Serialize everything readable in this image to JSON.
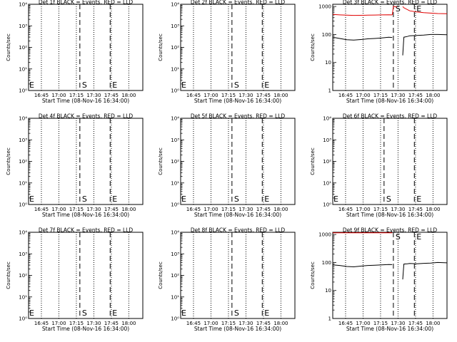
{
  "figure": {
    "background": "#ffffff",
    "ink": "#000000",
    "events_color": "#000000",
    "lld_color": "#e00000"
  },
  "chart_data": [
    {
      "type": "line",
      "id": "det1",
      "title": "Det 1f BLACK = Events, RED = LLD",
      "xlabel": "Start Time (08-Nov-16 16:34:00)",
      "ylabel": "Counts/sec",
      "xlim": [
        "16:34",
        "18:12"
      ],
      "xticks": [
        "16:45",
        "17:00",
        "17:15",
        "17:30",
        "17:45",
        "18:00"
      ],
      "yscale": "log",
      "ylim": [
        1,
        10000
      ],
      "yticks": [
        "10⁰",
        "10¹",
        "10²",
        "10³",
        "10⁴"
      ],
      "markers": [
        {
          "label": "E",
          "time": "16:34"
        },
        {
          "label": "S",
          "time": "17:18"
        },
        {
          "label": "E",
          "time": "17:44"
        }
      ],
      "series": []
    },
    {
      "type": "line",
      "id": "det2",
      "title": "Det 2f BLACK = Events, RED = LLD",
      "xlabel": "Start Time (08-Nov-16 16:34:00)",
      "ylabel": "Counts/sec",
      "xlim": [
        "16:34",
        "18:12"
      ],
      "xticks": [
        "16:45",
        "17:00",
        "17:15",
        "17:30",
        "17:45",
        "18:00"
      ],
      "yscale": "log",
      "ylim": [
        1,
        10000
      ],
      "yticks": [
        "10⁰",
        "10¹",
        "10²",
        "10³",
        "10⁴"
      ],
      "markers": [
        {
          "label": "E",
          "time": "16:34"
        },
        {
          "label": "S",
          "time": "17:18"
        },
        {
          "label": "E",
          "time": "17:44"
        }
      ],
      "series": []
    },
    {
      "type": "line",
      "id": "det3",
      "title": "Det 3f BLACK = Events, RED = LLD",
      "xlabel": "Start Time (08-Nov-16 16:34:00)",
      "ylabel": "Counts/sec",
      "xlim": [
        "16:34",
        "18:12"
      ],
      "xticks": [
        "16:45",
        "17:00",
        "17:15",
        "17:30",
        "17:45",
        "18:00"
      ],
      "yscale": "log",
      "ylim": [
        1,
        1200
      ],
      "yticks": [
        "1",
        "10",
        "100",
        "1000"
      ],
      "markers": [
        {
          "label": "S",
          "time": "17:26"
        },
        {
          "label": "E",
          "time": "17:44"
        }
      ],
      "series": [
        {
          "color": "#e00000",
          "segments": [
            {
              "x": [
                "16:34",
                "16:40",
                "16:46",
                "16:52",
                "16:58",
                "17:04",
                "17:10",
                "17:16",
                "17:22",
                "17:25"
              ],
              "y": [
                520,
                500,
                490,
                480,
                485,
                490,
                495,
                500,
                505,
                500
              ]
            },
            {
              "x": [
                "17:25",
                "17:26",
                "17:27",
                "17:29"
              ],
              "y": [
                500,
                1000,
                1000,
                950
              ]
            },
            {
              "x": [
                "17:34",
                "17:35",
                "17:40",
                "17:46",
                "17:52",
                "17:58",
                "18:04",
                "18:12"
              ],
              "y": [
                1000,
                900,
                700,
                640,
                600,
                580,
                560,
                550
              ]
            }
          ]
        },
        {
          "color": "#000000",
          "segments": [
            {
              "x": [
                "16:34",
                "16:40",
                "16:46",
                "16:52",
                "16:58",
                "17:04",
                "17:10",
                "17:16",
                "17:22",
                "17:25"
              ],
              "y": [
                80,
                72,
                65,
                63,
                66,
                70,
                72,
                75,
                80,
                78
              ]
            },
            {
              "x": [
                "17:34",
                "17:35",
                "17:38",
                "17:40",
                "17:46",
                "17:52",
                "17:58",
                "18:04",
                "18:12"
              ],
              "y": [
                18,
                80,
                85,
                90,
                92,
                95,
                100,
                100,
                98
              ]
            }
          ]
        }
      ]
    },
    {
      "type": "line",
      "id": "det4",
      "title": "Det 4f BLACK = Events, RED = LLD",
      "xlabel": "Start Time (08-Nov-16 16:34:00)",
      "ylabel": "Counts/sec",
      "xlim": [
        "16:34",
        "18:12"
      ],
      "xticks": [
        "16:45",
        "17:00",
        "17:15",
        "17:30",
        "17:45",
        "18:00"
      ],
      "yscale": "log",
      "ylim": [
        1,
        10000
      ],
      "yticks": [
        "10⁰",
        "10¹",
        "10²",
        "10³",
        "10⁴"
      ],
      "markers": [
        {
          "label": "E",
          "time": "16:34"
        },
        {
          "label": "S",
          "time": "17:18"
        },
        {
          "label": "E",
          "time": "17:44"
        }
      ],
      "series": []
    },
    {
      "type": "line",
      "id": "det5",
      "title": "Det 5f BLACK = Events, RED = LLD",
      "xlabel": "Start Time (08-Nov-16 16:34:00)",
      "ylabel": "Counts/sec",
      "xlim": [
        "16:34",
        "18:12"
      ],
      "xticks": [
        "16:45",
        "17:00",
        "17:15",
        "17:30",
        "17:45",
        "18:00"
      ],
      "yscale": "log",
      "ylim": [
        1,
        10000
      ],
      "yticks": [
        "10⁰",
        "10¹",
        "10²",
        "10³",
        "10⁴"
      ],
      "markers": [
        {
          "label": "E",
          "time": "16:34"
        },
        {
          "label": "S",
          "time": "17:18"
        },
        {
          "label": "E",
          "time": "17:44"
        }
      ],
      "series": []
    },
    {
      "type": "line",
      "id": "det6",
      "title": "Det 6f BLACK = Events, RED = LLD",
      "xlabel": "Start Time (08-Nov-16 16:34:00)",
      "ylabel": "Counts/sec",
      "xlim": [
        "16:34",
        "18:12"
      ],
      "xticks": [
        "16:45",
        "17:00",
        "17:15",
        "17:30",
        "17:45",
        "18:00"
      ],
      "yscale": "log",
      "ylim": [
        1,
        10000
      ],
      "yticks": [
        "10⁰",
        "10¹",
        "10²",
        "10³",
        "10⁴"
      ],
      "markers": [
        {
          "label": "E",
          "time": "16:34"
        },
        {
          "label": "S",
          "time": "17:18"
        },
        {
          "label": "E",
          "time": "17:44"
        }
      ],
      "series": []
    },
    {
      "type": "line",
      "id": "det7",
      "title": "Det 7f BLACK = Events, RED = LLD",
      "xlabel": "Start Time (08-Nov-16 16:34:00)",
      "ylabel": "Counts/sec",
      "xlim": [
        "16:34",
        "18:12"
      ],
      "xticks": [
        "16:45",
        "17:00",
        "17:15",
        "17:30",
        "17:45",
        "18:00"
      ],
      "yscale": "log",
      "ylim": [
        1,
        10000
      ],
      "yticks": [
        "10⁰",
        "10¹",
        "10²",
        "10³",
        "10⁴"
      ],
      "markers": [
        {
          "label": "E",
          "time": "16:34"
        },
        {
          "label": "S",
          "time": "17:18"
        },
        {
          "label": "E",
          "time": "17:44"
        }
      ],
      "series": []
    },
    {
      "type": "line",
      "id": "det8",
      "title": "Det 8f BLACK = Events, RED = LLD",
      "xlabel": "Start Time (08-Nov-16 16:34:00)",
      "ylabel": "Counts/sec",
      "xlim": [
        "16:34",
        "18:12"
      ],
      "xticks": [
        "16:45",
        "17:00",
        "17:15",
        "17:30",
        "17:45",
        "18:00"
      ],
      "yscale": "log",
      "ylim": [
        1,
        10000
      ],
      "yticks": [
        "10⁰",
        "10¹",
        "10²",
        "10³",
        "10⁴"
      ],
      "markers": [
        {
          "label": "E",
          "time": "16:34"
        },
        {
          "label": "S",
          "time": "17:18"
        },
        {
          "label": "E",
          "time": "17:44"
        }
      ],
      "series": []
    },
    {
      "type": "line",
      "id": "det9",
      "title": "Det 9f BLACK = Events, RED = LLD",
      "xlabel": "Start Time (08-Nov-16 16:34:00)",
      "ylabel": "Counts/sec",
      "xlim": [
        "16:34",
        "18:12"
      ],
      "xticks": [
        "16:45",
        "17:00",
        "17:15",
        "17:30",
        "17:45",
        "18:00"
      ],
      "yscale": "log",
      "ylim": [
        1,
        1200
      ],
      "yticks": [
        "1",
        "10",
        "100",
        "1000"
      ],
      "markers": [
        {
          "label": "S",
          "time": "17:26"
        },
        {
          "label": "E",
          "time": "17:44"
        }
      ],
      "series": [
        {
          "color": "#e00000",
          "segments": [
            {
              "x": [
                "16:34",
                "16:40",
                "16:46",
                "16:52",
                "16:58",
                "17:04",
                "17:10",
                "17:16",
                "17:22",
                "17:25"
              ],
              "y": [
                1150,
                1150,
                1150,
                1150,
                1150,
                1150,
                1150,
                1150,
                1150,
                1150
              ]
            }
          ]
        },
        {
          "color": "#000000",
          "segments": [
            {
              "x": [
                "16:34",
                "16:40",
                "16:46",
                "16:52",
                "16:58",
                "17:04",
                "17:10",
                "17:16",
                "17:22",
                "17:25"
              ],
              "y": [
                82,
                78,
                72,
                70,
                74,
                78,
                80,
                82,
                85,
                84
              ]
            },
            {
              "x": [
                "17:34",
                "17:35",
                "17:38",
                "17:40",
                "17:46",
                "17:52",
                "17:58",
                "18:04",
                "18:12"
              ],
              "y": [
                25,
                88,
                90,
                92,
                90,
                93,
                95,
                100,
                97
              ]
            }
          ]
        }
      ]
    }
  ]
}
